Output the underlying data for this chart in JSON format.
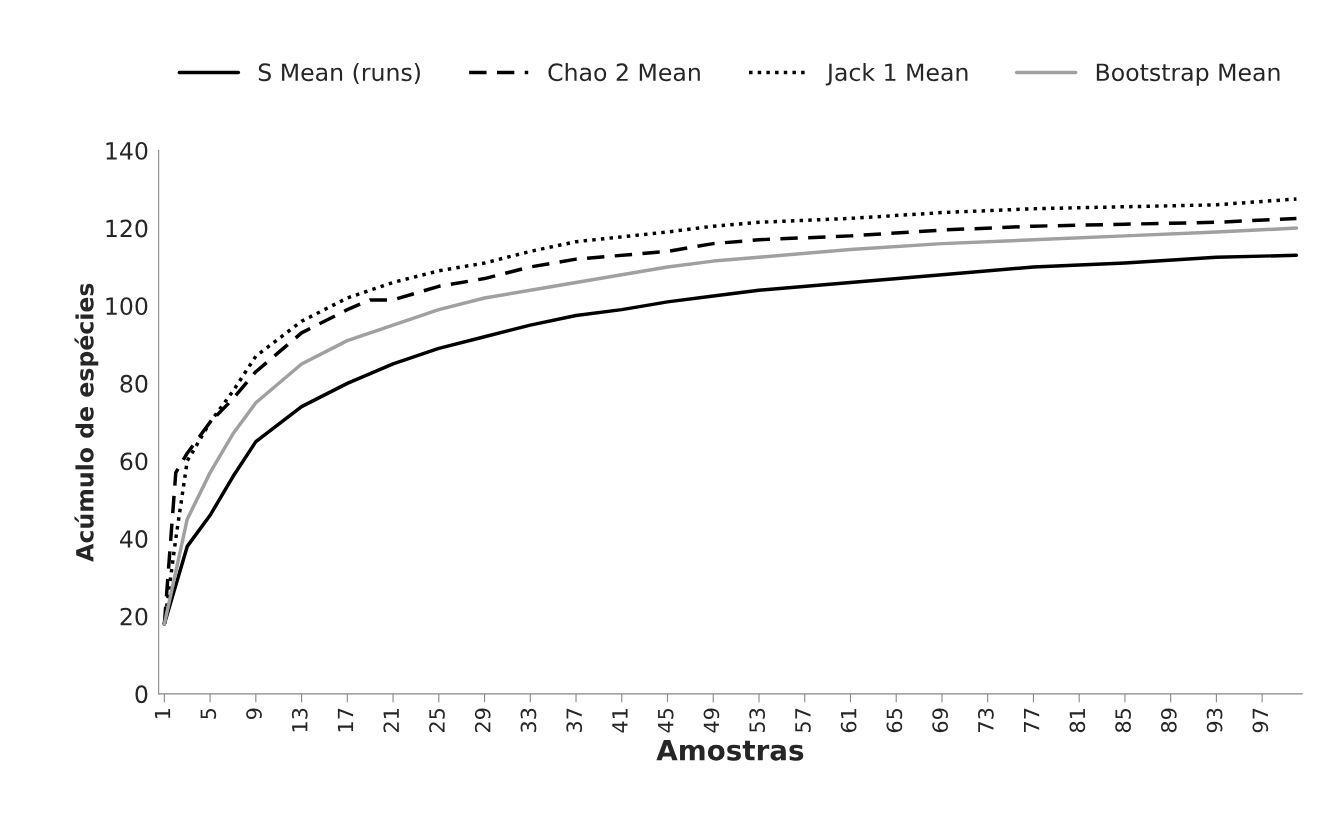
{
  "chart_data": {
    "type": "line",
    "xlabel": "Amostras",
    "ylabel": "Acúmulo de espécies",
    "xlim": [
      0.5,
      100.5
    ],
    "xticks": [
      1,
      5,
      9,
      13,
      17,
      21,
      25,
      29,
      33,
      37,
      41,
      45,
      49,
      53,
      57,
      61,
      65,
      69,
      73,
      77,
      81,
      85,
      89,
      93,
      97
    ],
    "ylim": [
      0,
      140
    ],
    "yticks": [
      0,
      20,
      40,
      60,
      80,
      100,
      120,
      140
    ],
    "grid": false,
    "legend": "top",
    "marker": "none",
    "series": [
      {
        "name": "S Mean (runs)",
        "color": "#000000",
        "line_style": "solid",
        "x": [
          1,
          3,
          5,
          7,
          9,
          13,
          17,
          21,
          25,
          29,
          33,
          37,
          41,
          45,
          49,
          53,
          61,
          69,
          77,
          85,
          93,
          100
        ],
        "values": [
          18,
          38,
          46,
          56,
          65,
          74,
          80,
          85,
          89,
          92,
          95,
          97.5,
          99,
          101,
          102.5,
          104,
          106,
          108,
          110,
          111,
          112.5,
          113
        ]
      },
      {
        "name": "Chao 2 Mean",
        "color": "#000000",
        "line_style": "dashed",
        "x": [
          1,
          2,
          3,
          5,
          7,
          9,
          13,
          17,
          19,
          21,
          25,
          29,
          33,
          37,
          45,
          49,
          53,
          61,
          69,
          77,
          85,
          93,
          100
        ],
        "values": [
          18,
          57,
          62,
          70,
          76,
          83,
          93,
          99,
          101.5,
          101.5,
          105,
          107,
          110,
          112,
          114,
          116,
          117,
          118,
          119.5,
          120.5,
          121,
          121.5,
          122.5
        ]
      },
      {
        "name": "Jack 1 Mean",
        "color": "#000000",
        "line_style": "dotted",
        "x": [
          1,
          2,
          3,
          5,
          7,
          9,
          13,
          17,
          21,
          25,
          29,
          33,
          37,
          45,
          49,
          53,
          61,
          69,
          77,
          85,
          93,
          100
        ],
        "values": [
          18,
          40,
          60,
          70,
          78,
          87,
          96,
          102,
          106,
          109,
          111,
          114,
          116.5,
          119,
          120.5,
          121.5,
          122.5,
          124,
          125,
          125.5,
          126,
          127.5
        ]
      },
      {
        "name": "Bootstrap Mean",
        "color": "#a0a0a0",
        "line_style": "solid",
        "x": [
          1,
          3,
          5,
          7,
          9,
          13,
          17,
          21,
          25,
          29,
          33,
          37,
          45,
          49,
          53,
          61,
          69,
          77,
          85,
          93,
          100
        ],
        "values": [
          18,
          45,
          57,
          67,
          75,
          85,
          91,
          95,
          99,
          102,
          104,
          106,
          110,
          111.5,
          112.5,
          114.5,
          116,
          117,
          118,
          119,
          120
        ]
      }
    ]
  }
}
